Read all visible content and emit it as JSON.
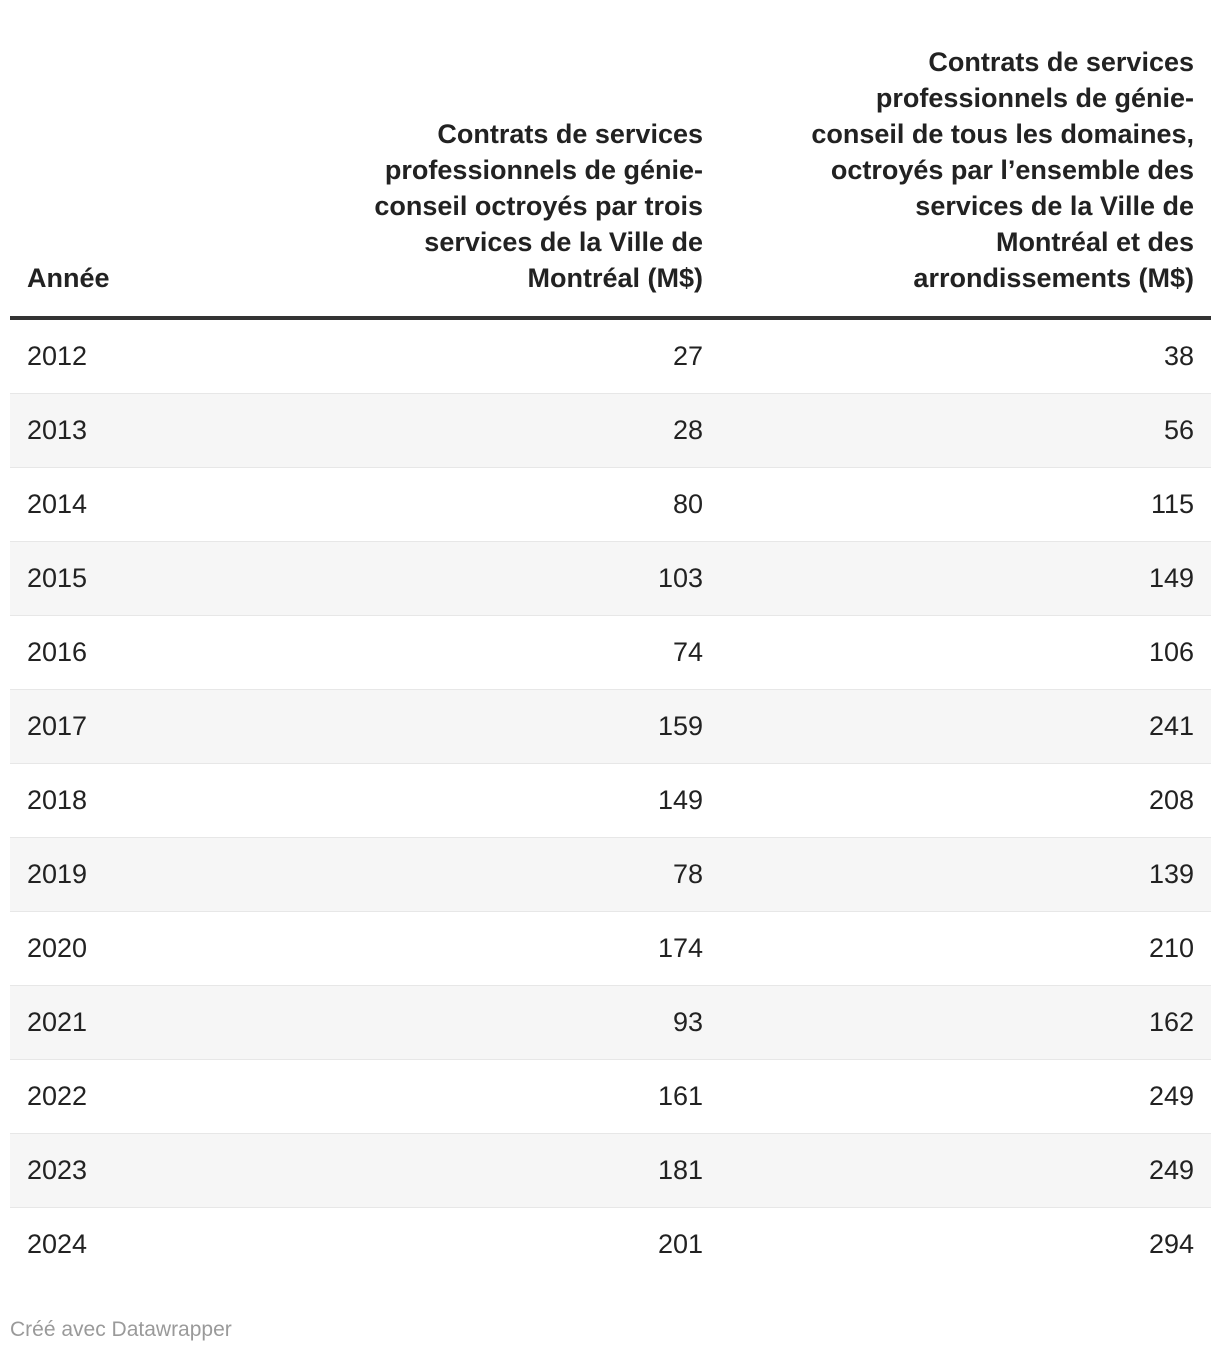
{
  "chart_data": {
    "type": "table",
    "columns": [
      "Année",
      "Contrats de services professionnels de génie-conseil octroyés par trois services de la Ville de Montréal (M$)",
      "Contrats de services professionnels de génie-conseil de tous les domaines, octroyés par l’ensemble des services de la Ville de Montréal et des arrondissements (M$)"
    ],
    "rows": [
      [
        2012,
        27,
        38
      ],
      [
        2013,
        28,
        56
      ],
      [
        2014,
        80,
        115
      ],
      [
        2015,
        103,
        149
      ],
      [
        2016,
        74,
        106
      ],
      [
        2017,
        159,
        241
      ],
      [
        2018,
        149,
        208
      ],
      [
        2019,
        78,
        139
      ],
      [
        2020,
        174,
        210
      ],
      [
        2021,
        93,
        162
      ],
      [
        2022,
        161,
        249
      ],
      [
        2023,
        181,
        249
      ],
      [
        2024,
        201,
        294
      ]
    ],
    "layout_hints": {
      "striped_rows": true,
      "header_alignment": [
        "left",
        "right",
        "right"
      ],
      "value_alignment": [
        "left",
        "right",
        "right"
      ]
    }
  },
  "header": {
    "col_year": "Année",
    "col_three_services": "Contrats de services\nprofessionnels de génie-\nconseil octroyés par trois\nservices de la Ville de\nMontréal (M$)",
    "col_all_services": "Contrats de services\nprofessionnels de génie-\nconseil de tous les domaines,\noctroyés par l’ensemble des\nservices de la Ville de\nMontréal et des\narrondissements (M$)"
  },
  "footer": {
    "credit": "Créé avec Datawrapper"
  },
  "colors": {
    "header_rule": "#333333",
    "row_stripe": "#f6f6f6",
    "row_border": "#e7e7e7",
    "text": "#222222",
    "footer_text": "#9a9a9a"
  }
}
